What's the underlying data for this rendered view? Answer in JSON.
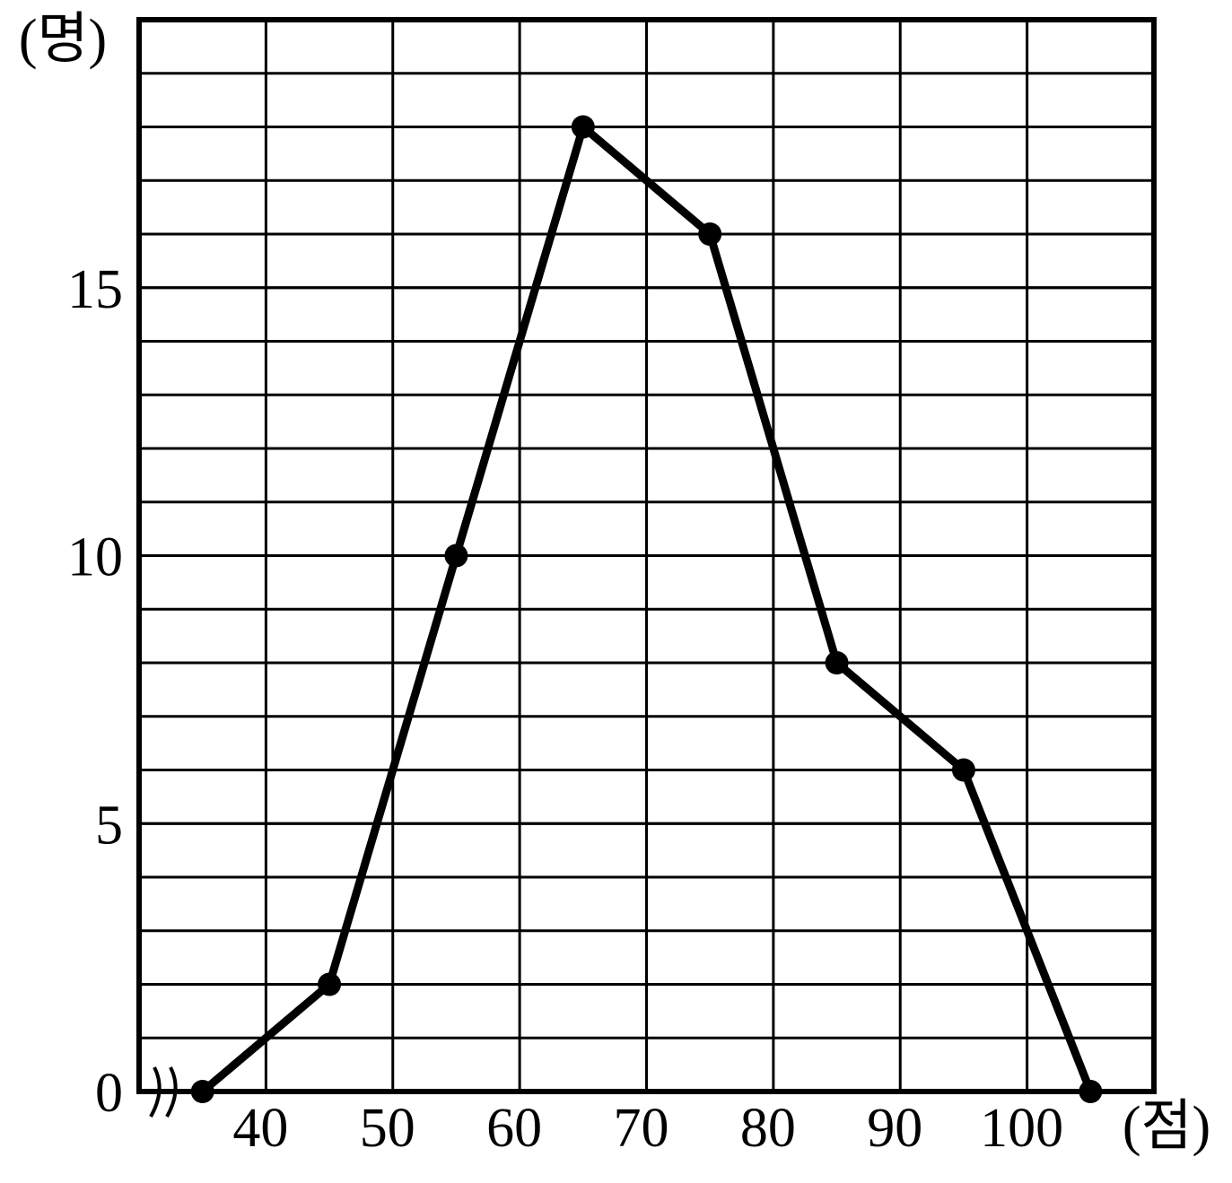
{
  "chart_data": {
    "type": "line",
    "y_label": "(명)",
    "x_label": "(점)",
    "x": [
      35,
      45,
      55,
      65,
      75,
      85,
      95,
      105
    ],
    "series": [
      {
        "color": "#000000",
        "values": [
          0,
          2,
          10,
          18,
          16,
          8,
          6,
          0
        ]
      }
    ],
    "xlim": [
      30,
      110
    ],
    "xticks": [
      40,
      50,
      60,
      70,
      80,
      90,
      100
    ],
    "ylim": [
      0,
      20
    ],
    "yticks": [
      0,
      5,
      10,
      15
    ],
    "ygrid": [
      1,
      2,
      3,
      4,
      5,
      6,
      7,
      8,
      9,
      10,
      11,
      12,
      13,
      14,
      15,
      16,
      17,
      18,
      19,
      20
    ],
    "grid": true
  }
}
